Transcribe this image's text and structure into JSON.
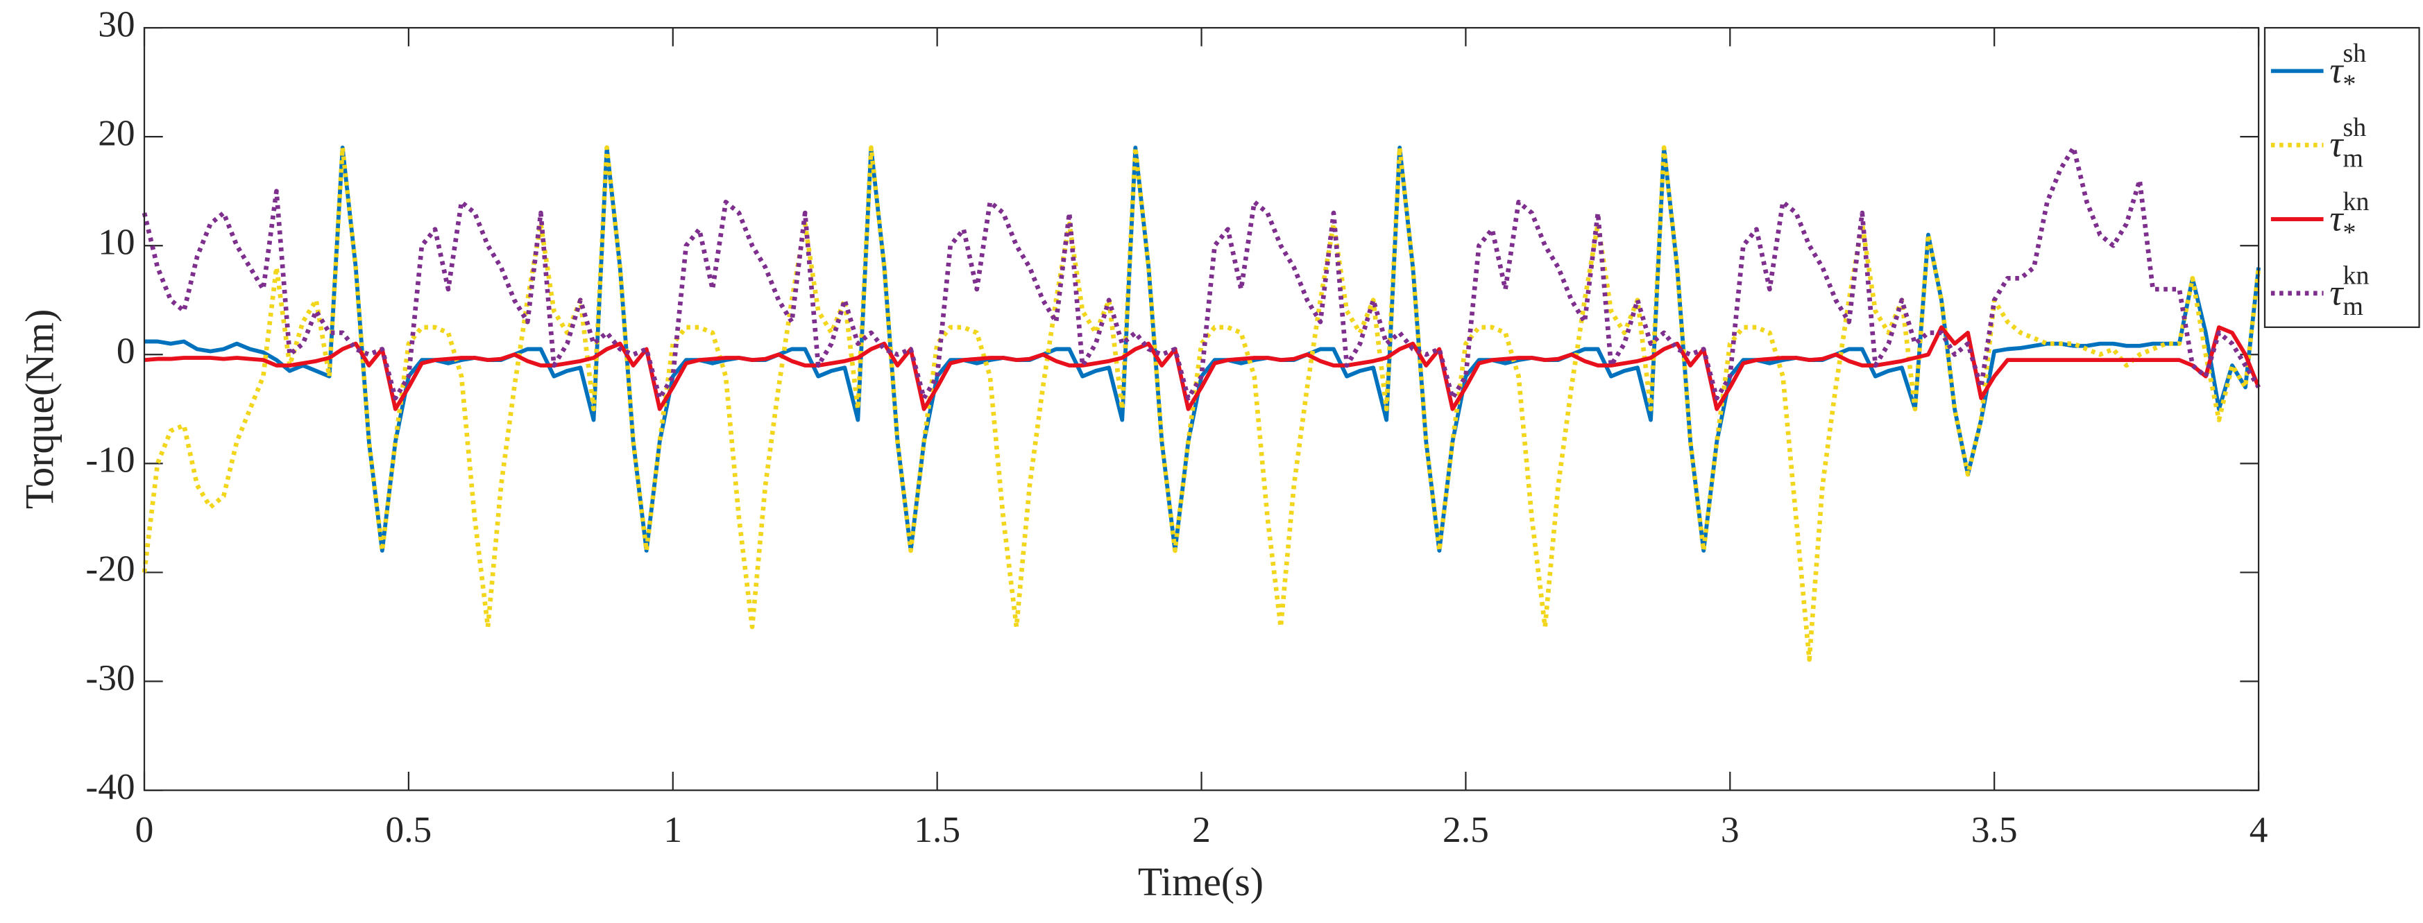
{
  "chart_data": {
    "type": "line",
    "xlabel": "Time(s)",
    "ylabel": "Torque(Nm)",
    "xlim": [
      0,
      4
    ],
    "xticks": [
      0,
      0.5,
      1,
      1.5,
      2,
      2.5,
      3,
      3.5,
      4
    ],
    "ylim": [
      -40,
      30
    ],
    "yticks": [
      -40,
      -30,
      -20,
      -10,
      0,
      10,
      20,
      30
    ],
    "grid": false,
    "legend": "outside-right",
    "x": [
      0,
      0.025,
      0.05,
      0.075,
      0.1,
      0.125,
      0.15,
      0.175,
      0.2,
      0.225,
      0.25,
      0.275,
      0.3,
      0.325,
      0.35,
      0.375,
      0.4,
      0.425,
      0.45,
      0.475,
      0.5,
      0.525,
      0.55,
      0.575,
      0.6,
      0.625,
      0.65,
      0.675,
      0.7,
      0.725,
      0.75,
      0.775,
      0.8,
      0.825,
      0.85,
      0.875,
      0.9,
      0.925,
      0.95,
      0.975,
      1,
      1.025,
      1.05,
      1.075,
      1.1,
      1.125,
      1.15,
      1.175,
      1.2,
      1.225,
      1.25,
      1.275,
      1.3,
      1.325,
      1.35,
      1.375,
      1.4,
      1.425,
      1.45,
      1.475,
      1.5,
      1.525,
      1.55,
      1.575,
      1.6,
      1.625,
      1.65,
      1.675,
      1.7,
      1.725,
      1.75,
      1.775,
      1.8,
      1.825,
      1.85,
      1.875,
      1.9,
      1.925,
      1.95,
      1.975,
      2,
      2.025,
      2.05,
      2.075,
      2.1,
      2.125,
      2.15,
      2.175,
      2.2,
      2.225,
      2.25,
      2.275,
      2.3,
      2.325,
      2.35,
      2.375,
      2.4,
      2.425,
      2.45,
      2.475,
      2.5,
      2.525,
      2.55,
      2.575,
      2.6,
      2.625,
      2.65,
      2.675,
      2.7,
      2.725,
      2.75,
      2.775,
      2.8,
      2.825,
      2.85,
      2.875,
      2.9,
      2.925,
      2.95,
      2.975,
      3,
      3.025,
      3.05,
      3.075,
      3.1,
      3.125,
      3.15,
      3.175,
      3.2,
      3.225,
      3.25,
      3.275,
      3.3,
      3.325,
      3.35,
      3.375,
      3.4,
      3.425,
      3.45,
      3.475,
      3.5,
      3.525,
      3.55,
      3.575,
      3.6,
      3.625,
      3.65,
      3.675,
      3.7,
      3.725,
      3.75,
      3.775,
      3.8,
      3.825,
      3.85,
      3.875,
      3.9,
      3.925,
      3.95,
      3.975,
      4
    ],
    "series": [
      {
        "name": "τ",
        "subscript": "*",
        "superscript": "sh",
        "color": "#0072bd",
        "dash": "solid",
        "values": [
          1.2,
          1.2,
          1,
          1.2,
          0.5,
          0.3,
          0.5,
          1,
          0.5,
          0.2,
          -0.5,
          -1.5,
          -1,
          -1.5,
          -2,
          19,
          8,
          -8,
          -18,
          -8,
          -2,
          -0.5,
          -0.5,
          -0.8,
          -0.5,
          -0.3,
          -0.5,
          -0.5,
          0,
          0.5,
          0.5,
          -2,
          -1.5,
          -1.2,
          -6,
          19,
          8,
          -8,
          -18,
          -8,
          -2,
          -0.5,
          -0.5,
          -0.8,
          -0.5,
          -0.3,
          -0.5,
          -0.5,
          0,
          0.5,
          0.5,
          -2,
          -1.5,
          -1.2,
          -6,
          19,
          8,
          -8,
          -18,
          -8,
          -2,
          -0.5,
          -0.5,
          -0.8,
          -0.5,
          -0.3,
          -0.5,
          -0.5,
          0,
          0.5,
          0.5,
          -2,
          -1.5,
          -1.2,
          -6,
          19,
          8,
          -8,
          -18,
          -8,
          -2,
          -0.5,
          -0.5,
          -0.8,
          -0.5,
          -0.3,
          -0.5,
          -0.5,
          0,
          0.5,
          0.5,
          -2,
          -1.5,
          -1.2,
          -6,
          19,
          8,
          -8,
          -18,
          -8,
          -2,
          -0.5,
          -0.5,
          -0.8,
          -0.5,
          -0.3,
          -0.5,
          -0.5,
          0,
          0.5,
          0.5,
          -2,
          -1.5,
          -1.2,
          -6,
          19,
          8,
          -8,
          -18,
          -8,
          -2,
          -0.5,
          -0.5,
          -0.8,
          -0.5,
          -0.3,
          -0.5,
          -0.5,
          0,
          0.5,
          0.5,
          -2,
          -1.5,
          -1.2,
          -5,
          11,
          5,
          -5,
          -11,
          -6,
          0.3,
          0.5,
          0.6,
          0.8,
          1,
          1,
          0.8,
          0.8,
          1,
          1,
          0.8,
          0.8,
          1,
          1,
          1,
          7,
          2,
          -5,
          -1,
          -3,
          8
        ]
      },
      {
        "name": "τ",
        "subscript": "m",
        "superscript": "sh",
        "color": "#f2d61c",
        "dash": "dotted",
        "values": [
          -20,
          -10,
          -7,
          -6.5,
          -12,
          -14,
          -13,
          -8,
          -5,
          -2,
          8,
          -1,
          3,
          5,
          -2,
          19,
          8,
          -8,
          -18,
          -8,
          1,
          2.5,
          2.5,
          2,
          -2,
          -15,
          -25,
          -12,
          -3,
          5,
          12,
          4,
          2,
          5,
          -5,
          19,
          8,
          -8,
          -18,
          -8,
          1,
          2.5,
          2.5,
          2,
          -2,
          -15,
          -25,
          -12,
          -3,
          5,
          12,
          4,
          2,
          5,
          -5,
          19,
          8,
          -8,
          -18,
          -8,
          1,
          2.5,
          2.5,
          2,
          -2,
          -15,
          -25,
          -12,
          -3,
          5,
          12,
          4,
          2,
          5,
          -5,
          19,
          8,
          -8,
          -18,
          -8,
          1,
          2.5,
          2.5,
          2,
          -2,
          -15,
          -25,
          -12,
          -3,
          5,
          12,
          4,
          2,
          5,
          -5,
          19,
          8,
          -8,
          -18,
          -8,
          1,
          2.5,
          2.5,
          2,
          -2,
          -15,
          -25,
          -12,
          -3,
          5,
          12,
          4,
          2,
          5,
          -5,
          19,
          8,
          -8,
          -18,
          -8,
          1,
          2.5,
          2.5,
          2,
          -2,
          -15,
          -28,
          -12,
          -3,
          5,
          12,
          4,
          2,
          5,
          -5,
          11,
          5,
          -5,
          -11,
          -6,
          5,
          3,
          2,
          1.5,
          1,
          1,
          1,
          0.5,
          0,
          0.5,
          -1,
          0,
          0.5,
          1,
          1,
          7,
          0,
          -6,
          -1,
          -3,
          8
        ]
      },
      {
        "name": "τ",
        "subscript": "*",
        "superscript": "kn",
        "color": "#e8101c",
        "dash": "solid",
        "values": [
          -0.5,
          -0.4,
          -0.4,
          -0.3,
          -0.3,
          -0.3,
          -0.4,
          -0.3,
          -0.4,
          -0.5,
          -1,
          -1,
          -0.8,
          -0.6,
          -0.3,
          0.5,
          1,
          -1,
          0.5,
          -5,
          -3,
          -0.8,
          -0.5,
          -0.4,
          -0.3,
          -0.3,
          -0.5,
          -0.4,
          0,
          -0.6,
          -1,
          -1,
          -0.8,
          -0.6,
          -0.3,
          0.5,
          1,
          -1,
          0.5,
          -5,
          -3,
          -0.8,
          -0.5,
          -0.4,
          -0.3,
          -0.3,
          -0.5,
          -0.4,
          0,
          -0.6,
          -1,
          -1,
          -0.8,
          -0.6,
          -0.3,
          0.5,
          1,
          -1,
          0.5,
          -5,
          -3,
          -0.8,
          -0.5,
          -0.4,
          -0.3,
          -0.3,
          -0.5,
          -0.4,
          0,
          -0.6,
          -1,
          -1,
          -0.8,
          -0.6,
          -0.3,
          0.5,
          1,
          -1,
          0.5,
          -5,
          -3,
          -0.8,
          -0.5,
          -0.4,
          -0.3,
          -0.3,
          -0.5,
          -0.4,
          0,
          -0.6,
          -1,
          -1,
          -0.8,
          -0.6,
          -0.3,
          0.5,
          1,
          -1,
          0.5,
          -5,
          -3,
          -0.8,
          -0.5,
          -0.4,
          -0.3,
          -0.3,
          -0.5,
          -0.4,
          0,
          -0.6,
          -1,
          -1,
          -0.8,
          -0.6,
          -0.3,
          0.5,
          1,
          -1,
          0.5,
          -5,
          -3,
          -0.8,
          -0.5,
          -0.4,
          -0.3,
          -0.3,
          -0.5,
          -0.4,
          0,
          -0.6,
          -1,
          -1,
          -0.8,
          -0.6,
          -0.3,
          0,
          2.5,
          1,
          2,
          -4,
          -2,
          -0.5,
          -0.5,
          -0.5,
          -0.5,
          -0.5,
          -0.5,
          -0.5,
          -0.5,
          -0.5,
          -0.5,
          -0.5,
          -0.5,
          -0.5,
          -0.5,
          -1,
          -2,
          2.5,
          2,
          0,
          -3
        ]
      },
      {
        "name": "τ",
        "subscript": "m",
        "superscript": "kn",
        "color": "#7e2f8e",
        "dash": "dotted",
        "values": [
          13,
          8,
          5,
          4,
          9,
          12,
          13,
          10,
          8,
          6,
          15,
          0,
          1,
          4,
          2,
          2,
          0.5,
          0,
          0.5,
          -4,
          -2,
          10,
          11.5,
          6,
          14,
          13,
          10,
          8,
          5,
          3,
          13,
          -1,
          1,
          5,
          1,
          2,
          0.5,
          0,
          0.5,
          -4,
          -2,
          10,
          11.5,
          6,
          14,
          13,
          10,
          8,
          5,
          3,
          13,
          -1,
          1,
          5,
          1,
          2,
          0.5,
          0,
          0.5,
          -4,
          -2,
          10,
          11.5,
          6,
          14,
          13,
          10,
          8,
          5,
          3,
          13,
          -1,
          1,
          5,
          1,
          2,
          0.5,
          0,
          0.5,
          -4,
          -2,
          10,
          11.5,
          6,
          14,
          13,
          10,
          8,
          5,
          3,
          13,
          -1,
          1,
          5,
          1,
          2,
          0.5,
          0,
          0.5,
          -4,
          -2,
          10,
          11.5,
          6,
          14,
          13,
          10,
          8,
          5,
          3,
          13,
          -1,
          1,
          5,
          1,
          2,
          0.5,
          0,
          0.5,
          -4,
          -2,
          10,
          11.5,
          6,
          14,
          13,
          10,
          8,
          5,
          3,
          13,
          -1,
          1,
          5,
          1,
          2,
          2,
          0,
          1,
          -3,
          5,
          7,
          7,
          8,
          14,
          17,
          19,
          14,
          11,
          10,
          12,
          16,
          6,
          6,
          6,
          -1,
          -2,
          2,
          1,
          -1,
          -3
        ]
      }
    ]
  }
}
